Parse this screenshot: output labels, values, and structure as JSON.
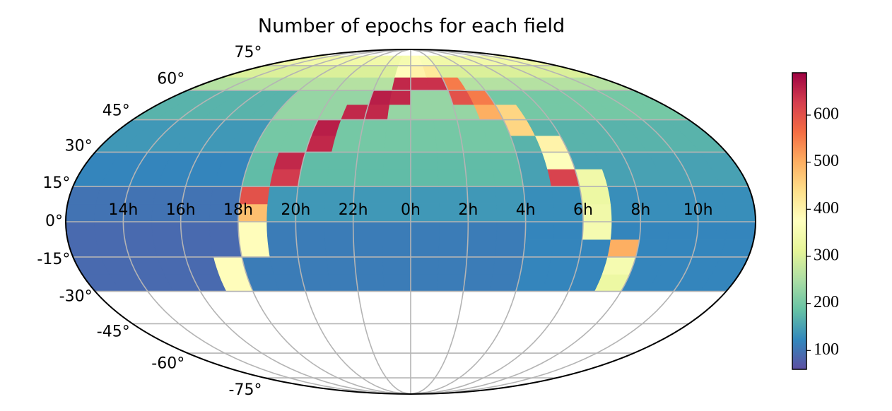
{
  "chart_data": {
    "type": "heatmap",
    "projection": "mollweide",
    "title": "Number of epochs for each field",
    "x": [
      0.5,
      1.5,
      2.5,
      3.5,
      4.5,
      5.5,
      6.5,
      7.5,
      8.5,
      9.5,
      10.5,
      11.5,
      12.5,
      13.5,
      14.5,
      15.5,
      16.5,
      17.5,
      18.5,
      19.5,
      20.5,
      21.5,
      22.5,
      23.5
    ],
    "y": [
      -26.25,
      -18.75,
      -11.25,
      -3.75,
      3.75,
      11.25,
      18.75,
      26.25,
      33.75,
      41.25,
      48.75,
      56.25,
      63.75,
      71.25,
      78.75
    ],
    "values": [
      [
        110,
        110,
        110,
        110,
        120,
        120,
        120,
        330,
        120,
        120,
        120,
        120,
        90,
        90,
        90,
        90,
        90,
        380,
        110,
        110,
        110,
        110,
        110,
        110
      ],
      [
        110,
        110,
        110,
        110,
        120,
        120,
        120,
        350,
        120,
        120,
        120,
        120,
        90,
        90,
        90,
        90,
        90,
        380,
        110,
        110,
        110,
        110,
        110,
        110
      ],
      [
        110,
        110,
        110,
        110,
        120,
        120,
        120,
        500,
        120,
        120,
        120,
        120,
        90,
        90,
        90,
        90,
        90,
        90,
        380,
        110,
        110,
        110,
        110,
        110
      ],
      [
        110,
        110,
        110,
        110,
        120,
        120,
        350,
        120,
        120,
        120,
        120,
        120,
        90,
        90,
        90,
        90,
        90,
        90,
        380,
        110,
        110,
        110,
        110,
        110
      ],
      [
        140,
        140,
        140,
        140,
        130,
        130,
        340,
        130,
        130,
        130,
        130,
        130,
        100,
        100,
        100,
        100,
        100,
        100,
        480,
        140,
        140,
        140,
        140,
        140
      ],
      [
        140,
        140,
        140,
        140,
        130,
        130,
        330,
        130,
        130,
        130,
        130,
        130,
        100,
        100,
        100,
        100,
        100,
        100,
        600,
        140,
        140,
        140,
        140,
        140
      ],
      [
        180,
        180,
        180,
        180,
        150,
        620,
        340,
        150,
        150,
        150,
        150,
        150,
        120,
        120,
        120,
        120,
        120,
        120,
        180,
        630,
        180,
        180,
        180,
        180
      ],
      [
        180,
        180,
        180,
        180,
        150,
        370,
        150,
        150,
        150,
        150,
        150,
        150,
        120,
        120,
        120,
        120,
        120,
        120,
        180,
        650,
        180,
        180,
        180,
        180
      ],
      [
        200,
        200,
        200,
        200,
        170,
        400,
        170,
        170,
        170,
        170,
        170,
        170,
        140,
        140,
        140,
        140,
        140,
        140,
        200,
        200,
        650,
        200,
        200,
        200
      ],
      [
        200,
        200,
        200,
        200,
        450,
        170,
        170,
        170,
        170,
        170,
        170,
        170,
        140,
        140,
        140,
        140,
        140,
        140,
        200,
        200,
        660,
        200,
        200,
        200
      ],
      [
        230,
        230,
        230,
        500,
        450,
        200,
        200,
        200,
        200,
        200,
        200,
        200,
        170,
        170,
        170,
        170,
        170,
        170,
        230,
        230,
        230,
        650,
        650,
        230
      ],
      [
        230,
        230,
        600,
        550,
        200,
        200,
        200,
        200,
        200,
        200,
        200,
        200,
        170,
        170,
        170,
        170,
        170,
        170,
        230,
        230,
        230,
        230,
        660,
        650
      ],
      [
        640,
        640,
        550,
        260,
        260,
        260,
        260,
        260,
        260,
        260,
        260,
        260,
        260,
        260,
        260,
        260,
        260,
        260,
        260,
        260,
        260,
        260,
        260,
        650
      ],
      [
        400,
        420,
        300,
        300,
        300,
        300,
        300,
        300,
        300,
        300,
        300,
        300,
        300,
        300,
        300,
        300,
        300,
        300,
        300,
        300,
        300,
        300,
        300,
        380
      ],
      [
        380,
        360,
        340,
        340,
        340,
        340,
        340,
        340,
        340,
        340,
        340,
        340,
        340,
        340,
        340,
        340,
        340,
        340,
        340,
        340,
        340,
        340,
        340,
        350
      ]
    ],
    "xticks": [
      {
        "value": 14,
        "label": "14h"
      },
      {
        "value": 16,
        "label": "16h"
      },
      {
        "value": 18,
        "label": "18h"
      },
      {
        "value": 20,
        "label": "20h"
      },
      {
        "value": 22,
        "label": "22h"
      },
      {
        "value": 0,
        "label": "0h"
      },
      {
        "value": 2,
        "label": "2h"
      },
      {
        "value": 4,
        "label": "4h"
      },
      {
        "value": 6,
        "label": "6h"
      },
      {
        "value": 8,
        "label": "8h"
      },
      {
        "value": 10,
        "label": "10h"
      }
    ],
    "yticks": [
      {
        "value": -75,
        "label": "-75°"
      },
      {
        "value": -60,
        "label": "-60°"
      },
      {
        "value": -45,
        "label": "-45°"
      },
      {
        "value": -30,
        "label": "-30°"
      },
      {
        "value": -15,
        "label": "-15°"
      },
      {
        "value": 0,
        "label": "0°"
      },
      {
        "value": 15,
        "label": "15°"
      },
      {
        "value": 30,
        "label": "30°"
      },
      {
        "value": 45,
        "label": "45°"
      },
      {
        "value": 60,
        "label": "60°"
      },
      {
        "value": 75,
        "label": "75°"
      }
    ],
    "grid": true,
    "colormap": [
      "#5e4fa2",
      "#3288bd",
      "#66c2a5",
      "#abdda4",
      "#e6f598",
      "#ffffbf",
      "#fee08b",
      "#fdae61",
      "#f46d43",
      "#d53e4f",
      "#9e0142"
    ],
    "clim": [
      60,
      690
    ],
    "cticks": [
      100,
      200,
      300,
      400,
      500,
      600
    ]
  }
}
